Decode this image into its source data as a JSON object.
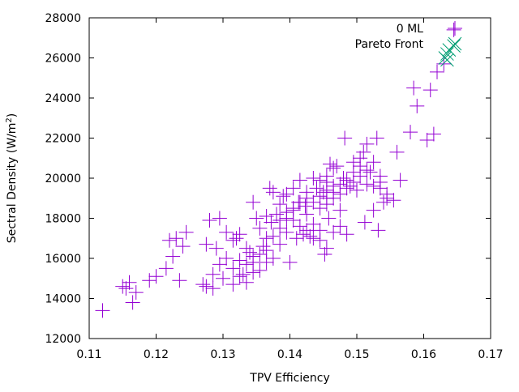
{
  "chart_data": {
    "type": "scatter",
    "xlabel": "TPV Efficiency",
    "ylabel": "Sectral Density (W/m",
    "ylabel_sup": "2",
    "ylabel_close": ")",
    "xlim": [
      0.11,
      0.17
    ],
    "ylim": [
      12000,
      28000
    ],
    "xticks": [
      "0.11",
      "0.12",
      "0.13",
      "0.14",
      "0.15",
      "0.16",
      "0.17"
    ],
    "yticks": [
      "12000",
      "14000",
      "16000",
      "18000",
      "20000",
      "22000",
      "24000",
      "26000",
      "28000"
    ],
    "grid": false,
    "legend_position": "top-right",
    "series": [
      {
        "name": "0 ML",
        "marker": "plus",
        "color": "#9400d3",
        "points": [
          [
            0.112,
            13400
          ],
          [
            0.115,
            14600
          ],
          [
            0.1155,
            14500
          ],
          [
            0.116,
            14800
          ],
          [
            0.1165,
            13800
          ],
          [
            0.117,
            14300
          ],
          [
            0.119,
            14900
          ],
          [
            0.12,
            15100
          ],
          [
            0.1215,
            15500
          ],
          [
            0.122,
            16900
          ],
          [
            0.1225,
            16100
          ],
          [
            0.123,
            17000
          ],
          [
            0.1235,
            14900
          ],
          [
            0.124,
            16600
          ],
          [
            0.1245,
            17300
          ],
          [
            0.127,
            14700
          ],
          [
            0.1275,
            16700
          ],
          [
            0.128,
            17900
          ],
          [
            0.1285,
            14500
          ],
          [
            0.129,
            16500
          ],
          [
            0.1295,
            18000
          ],
          [
            0.13,
            15000
          ],
          [
            0.1305,
            17300
          ],
          [
            0.1315,
            14700
          ],
          [
            0.132,
            17000
          ],
          [
            0.1325,
            15900
          ],
          [
            0.133,
            15200
          ],
          [
            0.1335,
            14800
          ],
          [
            0.134,
            16300
          ],
          [
            0.1345,
            16100
          ],
          [
            0.1345,
            18800
          ],
          [
            0.135,
            18000
          ],
          [
            0.1355,
            15400
          ],
          [
            0.136,
            16600
          ],
          [
            0.1365,
            15800
          ],
          [
            0.137,
            19500
          ],
          [
            0.1372,
            17800
          ],
          [
            0.1375,
            19300
          ],
          [
            0.138,
            18200
          ],
          [
            0.1385,
            16700
          ],
          [
            0.139,
            19100
          ],
          [
            0.1395,
            17300
          ],
          [
            0.14,
            15800
          ],
          [
            0.1405,
            18500
          ],
          [
            0.141,
            17000
          ],
          [
            0.1413,
            18800
          ],
          [
            0.1415,
            19900
          ],
          [
            0.142,
            17200
          ],
          [
            0.1423,
            18600
          ],
          [
            0.1425,
            19000
          ],
          [
            0.143,
            17100
          ],
          [
            0.1435,
            18800
          ],
          [
            0.144,
            19500
          ],
          [
            0.1445,
            17400
          ],
          [
            0.145,
            19300
          ],
          [
            0.1452,
            16200
          ],
          [
            0.1455,
            19800
          ],
          [
            0.1458,
            18000
          ],
          [
            0.146,
            20700
          ],
          [
            0.1465,
            19000
          ],
          [
            0.147,
            20600
          ],
          [
            0.1475,
            18400
          ],
          [
            0.148,
            20000
          ],
          [
            0.1482,
            22000
          ],
          [
            0.1485,
            17200
          ],
          [
            0.149,
            19600
          ],
          [
            0.1495,
            20300
          ],
          [
            0.15,
            19400
          ],
          [
            0.1505,
            20100
          ],
          [
            0.151,
            21300
          ],
          [
            0.1512,
            17800
          ],
          [
            0.1515,
            21700
          ],
          [
            0.152,
            20300
          ],
          [
            0.1525,
            18400
          ],
          [
            0.153,
            22000
          ],
          [
            0.1532,
            17400
          ],
          [
            0.1535,
            19800
          ],
          [
            0.154,
            18800
          ],
          [
            0.1545,
            19000
          ],
          [
            0.1555,
            18900
          ],
          [
            0.156,
            21300
          ],
          [
            0.1565,
            19900
          ],
          [
            0.158,
            22300
          ],
          [
            0.1585,
            24500
          ],
          [
            0.159,
            23600
          ],
          [
            0.1605,
            21900
          ],
          [
            0.161,
            24400
          ],
          [
            0.1615,
            22200
          ],
          [
            0.162,
            25300
          ],
          [
            0.163,
            25700
          ],
          [
            0.1645,
            27400
          ],
          [
            0.1325,
            17200
          ],
          [
            0.1315,
            16900
          ],
          [
            0.1335,
            15700
          ],
          [
            0.1345,
            15300
          ],
          [
            0.1355,
            16200
          ],
          [
            0.1365,
            16400
          ],
          [
            0.1375,
            17100
          ],
          [
            0.1385,
            17500
          ],
          [
            0.1395,
            18000
          ],
          [
            0.1405,
            18400
          ],
          [
            0.1415,
            17600
          ],
          [
            0.1425,
            18200
          ],
          [
            0.1435,
            17700
          ],
          [
            0.1445,
            18500
          ],
          [
            0.1455,
            19400
          ],
          [
            0.1465,
            19600
          ],
          [
            0.1475,
            19700
          ],
          [
            0.1485,
            19500
          ],
          [
            0.1495,
            19800
          ],
          [
            0.1505,
            20600
          ],
          [
            0.1515,
            19700
          ],
          [
            0.1525,
            20800
          ],
          [
            0.1535,
            19500
          ],
          [
            0.1545,
            19200
          ],
          [
            0.1365,
            18100
          ],
          [
            0.1385,
            18700
          ],
          [
            0.1395,
            19200
          ],
          [
            0.1405,
            17900
          ],
          [
            0.1425,
            17400
          ],
          [
            0.1435,
            17000
          ],
          [
            0.1445,
            16900
          ],
          [
            0.1455,
            16500
          ],
          [
            0.1465,
            17300
          ],
          [
            0.1475,
            17600
          ],
          [
            0.1455,
            18700
          ],
          [
            0.1445,
            19100
          ],
          [
            0.1455,
            19000
          ],
          [
            0.1465,
            19300
          ],
          [
            0.1475,
            19200
          ],
          [
            0.1485,
            19900
          ],
          [
            0.1495,
            20800
          ],
          [
            0.1505,
            21000
          ],
          [
            0.1515,
            20400
          ],
          [
            0.1525,
            19600
          ],
          [
            0.1535,
            20100
          ],
          [
            0.1345,
            15800
          ],
          [
            0.1335,
            16500
          ],
          [
            0.1325,
            15100
          ],
          [
            0.1315,
            15500
          ],
          [
            0.1305,
            16000
          ],
          [
            0.1295,
            15700
          ],
          [
            0.1285,
            15200
          ],
          [
            0.1275,
            14600
          ],
          [
            0.1355,
            17500
          ],
          [
            0.1365,
            17000
          ],
          [
            0.1375,
            16000
          ],
          [
            0.1385,
            17900
          ],
          [
            0.1395,
            18300
          ],
          [
            0.1405,
            19500
          ],
          [
            0.1415,
            18800
          ],
          [
            0.1425,
            19300
          ],
          [
            0.1435,
            20000
          ],
          [
            0.1445,
            19900
          ],
          [
            0.1455,
            20100
          ],
          [
            0.1465,
            20500
          ]
        ]
      },
      {
        "name": "Pareto Front",
        "marker": "cross",
        "color": "#009e73",
        "points": [
          [
            0.1645,
            26600
          ],
          [
            0.1635,
            26200
          ],
          [
            0.1635,
            25900
          ],
          [
            0.1638,
            26400
          ],
          [
            0.1632,
            26000
          ]
        ]
      }
    ]
  }
}
